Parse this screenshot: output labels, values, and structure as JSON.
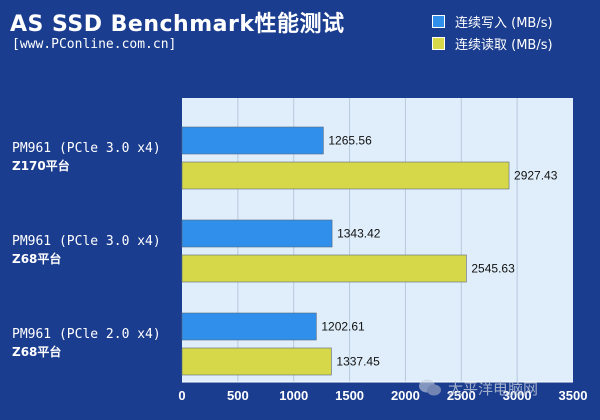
{
  "header": {
    "title": "AS SSD Benchmark性能测试",
    "subtitle": "[www.PConline.com.cn]"
  },
  "watermark": {
    "text": "太平洋电脑网",
    "icon": "wechat-icon"
  },
  "colors": {
    "background": "#1b3d8f",
    "plot": "#dfeefa",
    "write": "#2f8fea",
    "read": "#d6d84a"
  },
  "chart_data": {
    "type": "bar",
    "orientation": "horizontal",
    "title": "AS SSD Benchmark性能测试",
    "xlabel": "",
    "ylabel": "",
    "xlim": [
      0,
      3500
    ],
    "x_ticks": [
      0,
      500,
      1000,
      1500,
      2000,
      2500,
      3000,
      3500
    ],
    "grid": true,
    "legend_position": "top-right",
    "categories": [
      {
        "line1": "PM961 (PCle 3.0 x4)",
        "line2": "Z170平台"
      },
      {
        "line1": "PM961 (PCle 3.0 x4)",
        "line2": "Z68平台"
      },
      {
        "line1": "PM961 (PCle 2.0 x4)",
        "line2": "Z68平台"
      }
    ],
    "series": [
      {
        "name": "连续写入 (MB/s)",
        "color": "#2f8fea",
        "values": [
          1265.56,
          1343.42,
          1202.61
        ],
        "labels": [
          "1265.56",
          "1343.42",
          "1202.61"
        ]
      },
      {
        "name": "连续读取 (MB/s)",
        "color": "#d6d84a",
        "values": [
          2927.43,
          2545.63,
          1337.45
        ],
        "labels": [
          "2927.43",
          "2545.63",
          "1337.45"
        ]
      }
    ]
  }
}
